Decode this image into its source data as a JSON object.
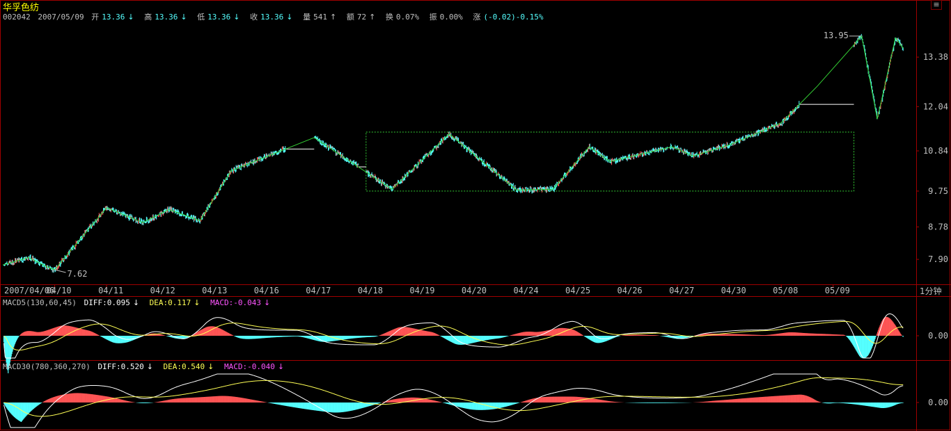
{
  "stock": {
    "name": "华孚色纺",
    "code": "002042",
    "date": "2007/05/09",
    "open_label": "开",
    "open": "13.36",
    "open_arrow": "↓",
    "high_label": "高",
    "high": "13.36",
    "high_arrow": "↓",
    "low_label": "低",
    "low": "13.36",
    "low_arrow": "↓",
    "close_label": "收",
    "close": "13.36",
    "close_arrow": "↓",
    "volume_label": "量",
    "volume": "541",
    "volume_arrow": "↑",
    "amount_label": "额",
    "amount": "72",
    "amount_arrow": "↑",
    "turnover_label": "换",
    "turnover": "0.07%",
    "amplitude_label": "振",
    "amplitude": "0.00%",
    "change_label": "涨",
    "change": "(-0.02)-0.15%"
  },
  "controls": {
    "close_glyph": "≡"
  },
  "period": "1分钟",
  "macd5": {
    "name": "MACD5(130,60,45)",
    "diff": "DIFF:0.095",
    "diff_arrow": "↓",
    "dea": "DEA:0.117",
    "dea_arrow": "↓",
    "macd": "MACD:-0.043",
    "macd_arrow": "↓"
  },
  "macd30": {
    "name": "MACD30(780,360,270)",
    "diff": "DIFF:0.520",
    "diff_arrow": "↓",
    "dea": "DEA:0.540",
    "dea_arrow": "↓",
    "macd": "MACD:-0.040",
    "macd_arrow": "↓"
  },
  "chart_data": [
    {
      "type": "line",
      "panel": "price",
      "x_ticks": [
        "2007/04/06",
        "04/10",
        "04/11",
        "04/12",
        "04/13",
        "04/16",
        "04/17",
        "04/18",
        "04/19",
        "04/20",
        "04/24",
        "04/25",
        "04/26",
        "04/27",
        "04/30",
        "05/08",
        "05/09"
      ],
      "y_ticks": [
        "13.38",
        "12.04",
        "10.84",
        "9.75",
        "8.78",
        "7.90"
      ],
      "ylim": [
        7.3,
        14.4
      ],
      "annotations": [
        {
          "text": "13.95",
          "value": 13.95
        },
        {
          "text": "7.62",
          "value": 7.62
        }
      ],
      "zigzag": [
        {
          "t": 0.0,
          "v": 7.75
        },
        {
          "t": 0.5,
          "v": 7.95
        },
        {
          "t": 0.85,
          "v": 7.7
        },
        {
          "t": 1.0,
          "v": 7.62
        },
        {
          "t": 2.0,
          "v": 9.3
        },
        {
          "t": 2.7,
          "v": 8.9
        },
        {
          "t": 3.2,
          "v": 9.25
        },
        {
          "t": 3.8,
          "v": 8.95
        },
        {
          "t": 4.4,
          "v": 10.3
        },
        {
          "t": 6.0,
          "v": 11.2
        },
        {
          "t": 7.5,
          "v": 9.8
        },
        {
          "t": 8.6,
          "v": 11.3
        },
        {
          "t": 9.9,
          "v": 9.78
        },
        {
          "t": 10.6,
          "v": 9.8
        },
        {
          "t": 11.3,
          "v": 10.95
        },
        {
          "t": 11.7,
          "v": 10.55
        },
        {
          "t": 12.9,
          "v": 10.95
        },
        {
          "t": 13.3,
          "v": 10.7
        },
        {
          "t": 14.0,
          "v": 11.0
        },
        {
          "t": 15.0,
          "v": 11.6
        },
        {
          "t": 15.7,
          "v": 12.6
        },
        {
          "t": 16.55,
          "v": 13.95
        },
        {
          "t": 16.85,
          "v": 11.7
        },
        {
          "t": 17.2,
          "v": 13.9
        },
        {
          "t": 17.35,
          "v": 13.62
        }
      ],
      "box_range": {
        "t_start": 7.0,
        "t_end": 16.4,
        "v_low": 9.75,
        "v_high": 11.35
      }
    },
    {
      "type": "line+histogram",
      "panel": "MACD5",
      "y_ticks": [
        "0.00"
      ],
      "series": [
        {
          "name": "DIFF"
        },
        {
          "name": "DEA"
        },
        {
          "name": "MACD"
        }
      ]
    },
    {
      "type": "line+histogram",
      "panel": "MACD30",
      "y_ticks": [
        "0.00"
      ],
      "series": [
        {
          "name": "DIFF"
        },
        {
          "name": "DEA"
        },
        {
          "name": "MACD"
        }
      ]
    }
  ],
  "colors": {
    "background": "#000000",
    "border": "#a00000",
    "grid_dash": "#a00000",
    "candle": "#55ffff",
    "candle_up": "#ff5555",
    "zigzag": "#33cc33",
    "price_axis_text": "#c0c0c0",
    "date_text": "#c0c0c0",
    "hist_pos": "#ff5555",
    "hist_neg": "#55ffff",
    "diff_line": "#ffffff",
    "dea_line": "#ffff55"
  }
}
